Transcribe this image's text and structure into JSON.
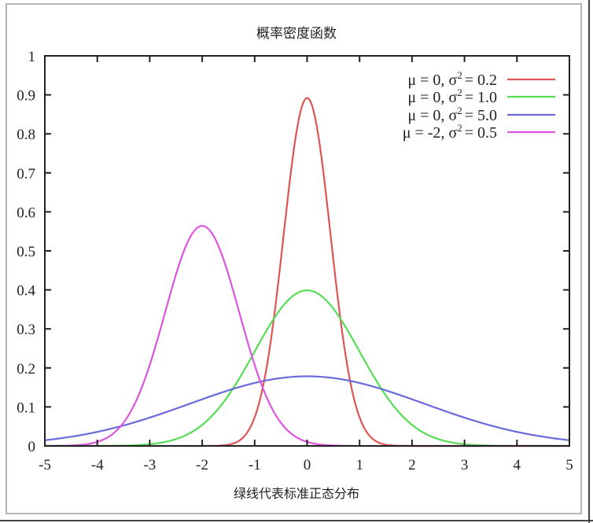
{
  "chart_data": {
    "type": "line",
    "title": "概率密度函数",
    "xlabel": "绿线代表标准正态分布",
    "ylabel": "",
    "xlim": [
      -5,
      5
    ],
    "ylim": [
      0,
      1
    ],
    "x_ticks": [
      -5,
      -4,
      -3,
      -2,
      -1,
      0,
      1,
      2,
      3,
      4,
      5
    ],
    "x_tick_labels": [
      "-5",
      "-4",
      "-3",
      "-2",
      "-1",
      "0",
      "1",
      "2",
      "3",
      "4",
      "5"
    ],
    "y_ticks": [
      0,
      0.1,
      0.2,
      0.3,
      0.4,
      0.5,
      0.6,
      0.7,
      0.8,
      0.9,
      1
    ],
    "y_tick_labels": [
      "0",
      "0.1",
      "0.2",
      "0.3",
      "0.4",
      "0.5",
      "0.6",
      "0.7",
      "0.8",
      "0.9",
      "1"
    ],
    "grid": false,
    "legend_position": "upper right",
    "series": [
      {
        "name": "μ = 0, σ² = 0.2",
        "mu": 0,
        "sigma2": 0.2,
        "color": "#dd5555",
        "peak": 0.892
      },
      {
        "name": "μ = 0, σ² = 1.0",
        "mu": 0,
        "sigma2": 1.0,
        "color": "#55dd55",
        "peak": 0.399
      },
      {
        "name": "μ = 0, σ² = 5.0",
        "mu": 0,
        "sigma2": 5.0,
        "color": "#6a6adb",
        "peak": 0.178
      },
      {
        "name": "μ = -2, σ² = 0.5",
        "mu": -2,
        "sigma2": 0.5,
        "color": "#dd55dd",
        "peak": 0.564
      }
    ]
  },
  "legend": {
    "items": [
      {
        "mu_text": "μ =  0, σ",
        "sup": "2",
        "sub": "2",
        "rest": " = 0.2"
      },
      {
        "mu_text": "μ =  0, σ",
        "sup": "2",
        "sub": "2",
        "rest": " = 1.0"
      },
      {
        "mu_text": "μ =  0, σ",
        "sup": "2",
        "sub": "2",
        "rest": " = 5.0"
      },
      {
        "mu_text": "μ = -2, σ",
        "sup": "2",
        "sub": "",
        "rest": " = 0.5"
      }
    ]
  }
}
